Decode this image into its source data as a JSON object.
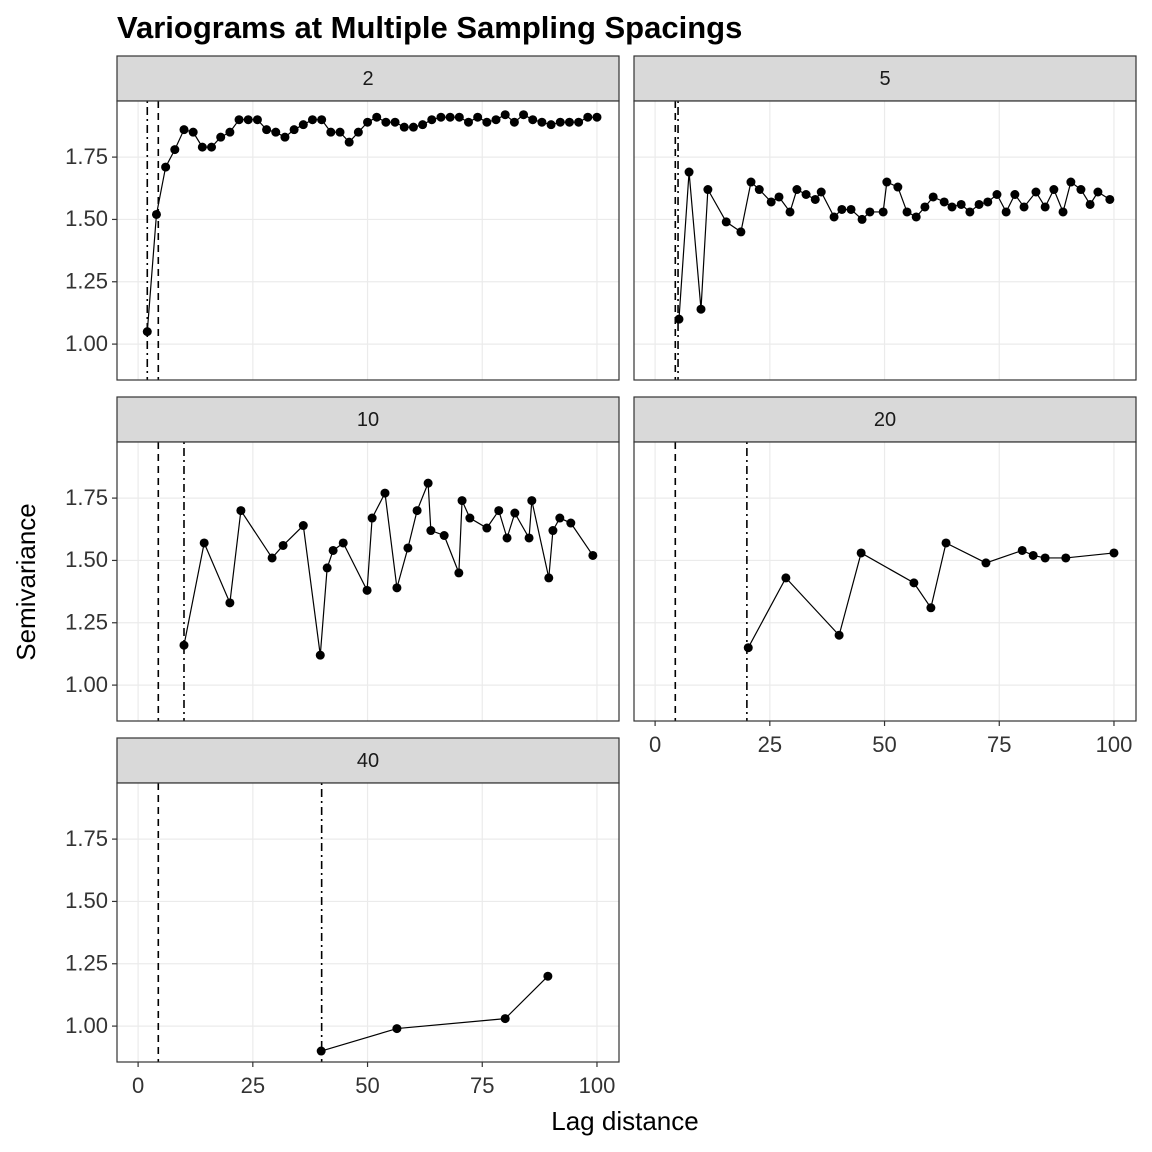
{
  "title": "Variograms at Multiple Sampling Spacings",
  "x_label": "Lag distance",
  "y_label": "Semivariance",
  "chart_data": [
    {
      "type": "line",
      "title": "2",
      "color": "#000000",
      "x": [
        2,
        4,
        6,
        8,
        10,
        12,
        14,
        16,
        18,
        20,
        22,
        24,
        26,
        28,
        30,
        32,
        34,
        36,
        38,
        40,
        42,
        44,
        46,
        48,
        50,
        52,
        54,
        56,
        58,
        60,
        62,
        64,
        66,
        68,
        70,
        72,
        74,
        76,
        78,
        80,
        82,
        84,
        86,
        88,
        90,
        92,
        94,
        96,
        98,
        100
      ],
      "values": [
        1.05,
        1.52,
        1.71,
        1.78,
        1.86,
        1.85,
        1.79,
        1.79,
        1.83,
        1.85,
        1.9,
        1.9,
        1.9,
        1.86,
        1.85,
        1.83,
        1.86,
        1.88,
        1.9,
        1.9,
        1.85,
        1.85,
        1.81,
        1.85,
        1.89,
        1.91,
        1.89,
        1.89,
        1.87,
        1.87,
        1.88,
        1.9,
        1.91,
        1.91,
        1.91,
        1.89,
        1.91,
        1.89,
        1.9,
        1.92,
        1.89,
        1.92,
        1.9,
        1.89,
        1.88,
        1.89,
        1.89,
        1.89,
        1.91,
        1.91
      ],
      "reference_lines": [
        {
          "x": 4.4,
          "style": "dashed"
        },
        {
          "x": 2,
          "style": "dotdash"
        }
      ],
      "xlim": [
        -4.6,
        104.8
      ],
      "ylim": [
        0.856,
        1.975
      ],
      "xticks": [
        0,
        25,
        50,
        75,
        100
      ],
      "yticks": [
        {
          "value": 1,
          "label": "1.00"
        },
        {
          "value": 1.25,
          "label": "1.25"
        },
        {
          "value": 1.5,
          "label": "1.50"
        },
        {
          "value": 1.75,
          "label": "1.75"
        }
      ],
      "grid": true
    },
    {
      "type": "line",
      "title": "5",
      "color": "#000000",
      "x": [
        5.2,
        7.4,
        10,
        11.5,
        15.5,
        18.7,
        20.9,
        22.7,
        25.3,
        27,
        29.4,
        30.9,
        32.9,
        34.9,
        36.2,
        39,
        40.7,
        42.7,
        45.1,
        46.8,
        49.7,
        50.5,
        52.9,
        54.9,
        56.9,
        58.8,
        60.6,
        63,
        64.7,
        66.7,
        68.6,
        70.6,
        72.5,
        74.5,
        76.5,
        78.4,
        80.4,
        83,
        85,
        86.9,
        88.9,
        90.6,
        92.8,
        94.8,
        96.5,
        99.1
      ],
      "values": [
        1.1,
        1.69,
        1.14,
        1.62,
        1.49,
        1.45,
        1.65,
        1.62,
        1.57,
        1.59,
        1.53,
        1.62,
        1.6,
        1.58,
        1.61,
        1.51,
        1.54,
        1.54,
        1.5,
        1.53,
        1.53,
        1.65,
        1.63,
        1.53,
        1.51,
        1.55,
        1.59,
        1.57,
        1.55,
        1.56,
        1.53,
        1.56,
        1.57,
        1.6,
        1.53,
        1.6,
        1.55,
        1.61,
        1.55,
        1.62,
        1.53,
        1.65,
        1.62,
        1.56,
        1.61,
        1.58
      ],
      "reference_lines": [
        {
          "x": 4.4,
          "style": "dashed"
        },
        {
          "x": 5,
          "style": "dotdash"
        }
      ],
      "xlim": [
        -4.6,
        104.8
      ],
      "ylim": [
        0.856,
        1.975
      ],
      "xticks": [
        0,
        25,
        50,
        75,
        100
      ],
      "yticks": [
        {
          "value": 1,
          "label": "1.00"
        },
        {
          "value": 1.25,
          "label": "1.25"
        },
        {
          "value": 1.5,
          "label": "1.50"
        },
        {
          "value": 1.75,
          "label": "1.75"
        }
      ],
      "grid": true
    },
    {
      "type": "line",
      "title": "10",
      "color": "#000000",
      "x": [
        10,
        14.4,
        20,
        22.4,
        29.2,
        31.6,
        36,
        39.7,
        41.2,
        42.5,
        44.7,
        49.9,
        51,
        53.8,
        56.4,
        58.8,
        60.8,
        63.2,
        63.8,
        66.7,
        69.9,
        70.6,
        72.3,
        76,
        78.6,
        80.4,
        82.1,
        85.2,
        85.8,
        89.5,
        90.4,
        91.9,
        94.3,
        99.1
      ],
      "values": [
        1.16,
        1.57,
        1.33,
        1.7,
        1.51,
        1.56,
        1.64,
        1.12,
        1.47,
        1.54,
        1.57,
        1.38,
        1.67,
        1.77,
        1.39,
        1.55,
        1.7,
        1.81,
        1.62,
        1.6,
        1.45,
        1.74,
        1.67,
        1.63,
        1.7,
        1.59,
        1.69,
        1.59,
        1.74,
        1.43,
        1.62,
        1.67,
        1.65,
        1.52
      ],
      "reference_lines": [
        {
          "x": 4.4,
          "style": "dashed"
        },
        {
          "x": 10,
          "style": "dotdash"
        }
      ],
      "xlim": [
        -4.6,
        104.8
      ],
      "ylim": [
        0.856,
        1.975
      ],
      "xticks": [
        0,
        25,
        50,
        75,
        100
      ],
      "yticks": [
        {
          "value": 1,
          "label": "1.00"
        },
        {
          "value": 1.25,
          "label": "1.25"
        },
        {
          "value": 1.5,
          "label": "1.50"
        },
        {
          "value": 1.75,
          "label": "1.75"
        }
      ],
      "grid": true
    },
    {
      "type": "line",
      "title": "20",
      "color": "#000000",
      "x": [
        20.3,
        28.5,
        40.1,
        44.9,
        56.4,
        60.1,
        63.4,
        72.1,
        80,
        82.4,
        85,
        89.5,
        100
      ],
      "values": [
        1.15,
        1.43,
        1.2,
        1.53,
        1.41,
        1.31,
        1.57,
        1.49,
        1.54,
        1.52,
        1.51,
        1.51,
        1.53
      ],
      "reference_lines": [
        {
          "x": 4.4,
          "style": "dashed"
        },
        {
          "x": 20,
          "style": "dotdash"
        }
      ],
      "xlim": [
        -4.6,
        104.8
      ],
      "ylim": [
        0.856,
        1.975
      ],
      "xticks": [
        0,
        25,
        50,
        75,
        100
      ],
      "yticks": [
        {
          "value": 1,
          "label": "1.00"
        },
        {
          "value": 1.25,
          "label": "1.25"
        },
        {
          "value": 1.5,
          "label": "1.50"
        },
        {
          "value": 1.75,
          "label": "1.75"
        }
      ],
      "grid": true
    },
    {
      "type": "line",
      "title": "40",
      "color": "#000000",
      "x": [
        39.9,
        56.4,
        80,
        89.3
      ],
      "values": [
        0.9,
        0.99,
        1.03,
        1.2
      ],
      "reference_lines": [
        {
          "x": 4.4,
          "style": "dashed"
        },
        {
          "x": 40,
          "style": "dotdash"
        }
      ],
      "xlim": [
        -4.6,
        104.8
      ],
      "ylim": [
        0.856,
        1.975
      ],
      "xticks": [
        0,
        25,
        50,
        75,
        100
      ],
      "yticks": [
        {
          "value": 1,
          "label": "1.00"
        },
        {
          "value": 1.25,
          "label": "1.25"
        },
        {
          "value": 1.5,
          "label": "1.50"
        },
        {
          "value": 1.75,
          "label": "1.75"
        }
      ],
      "grid": true
    }
  ]
}
